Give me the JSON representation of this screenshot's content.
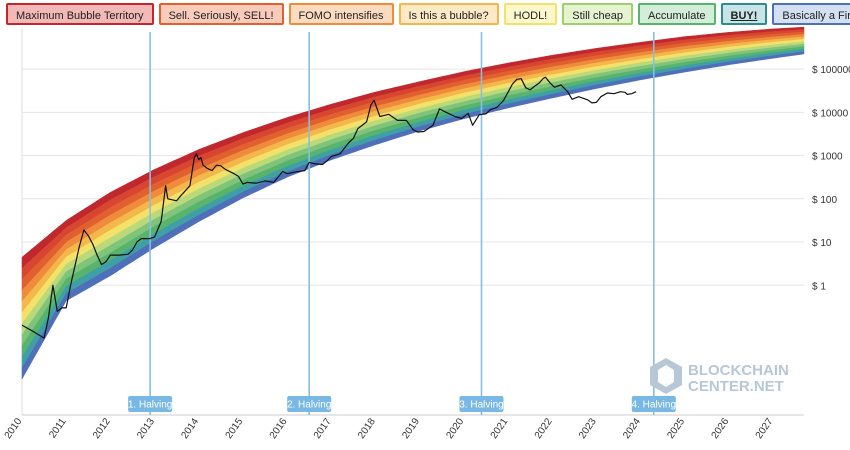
{
  "legend": [
    {
      "label": "Maximum Bubble Territory",
      "fill": "#f3b8b8",
      "border": "#c0282d"
    },
    {
      "label": "Sell. Seriously, SELL!",
      "fill": "#f8cbbb",
      "border": "#e0602f"
    },
    {
      "label": "FOMO intensifies",
      "fill": "#fbdcc0",
      "border": "#ef8b3a"
    },
    {
      "label": "Is this a bubble?",
      "fill": "#fde9c6",
      "border": "#f3b84c"
    },
    {
      "label": "HODL!",
      "fill": "#fdf7cd",
      "border": "#f4e16a"
    },
    {
      "label": "Still cheap",
      "fill": "#e6f3d1",
      "border": "#9fcf6b"
    },
    {
      "label": "Accumulate",
      "fill": "#d4edd8",
      "border": "#58b36c"
    },
    {
      "label": "BUY!",
      "fill": "#c8e4e6",
      "border": "#2f8b91"
    },
    {
      "label": "Basically a Fire Sale",
      "fill": "#d3e0f2",
      "border": "#4f6fb8"
    }
  ],
  "watermark": {
    "line1": "BLOCKCHAIN",
    "line2": "CENTER.NET"
  },
  "chart_data": {
    "type": "line",
    "y_scale": "log",
    "xlim": [
      2010.0,
      2027.7
    ],
    "ylim_log10": [
      -3.0,
      5.95
    ],
    "y_ticks": [
      {
        "value": 100000,
        "label": "$ 100000"
      },
      {
        "value": 10000,
        "label": "$ 10000"
      },
      {
        "value": 1000,
        "label": "$ 1000"
      },
      {
        "value": 100,
        "label": "$ 100"
      },
      {
        "value": 10,
        "label": "$ 10"
      },
      {
        "value": 1,
        "label": "$ 1"
      }
    ],
    "x_ticks": [
      {
        "value": 2010,
        "label": "2010"
      },
      {
        "value": 2011,
        "label": "2011"
      },
      {
        "value": 2012,
        "label": "2012"
      },
      {
        "value": 2013,
        "label": "2013"
      },
      {
        "value": 2014,
        "label": "2014"
      },
      {
        "value": 2015,
        "label": "2015"
      },
      {
        "value": 2016,
        "label": "2016"
      },
      {
        "value": 2017,
        "label": "2017"
      },
      {
        "value": 2018,
        "label": "2018"
      },
      {
        "value": 2019,
        "label": "2019"
      },
      {
        "value": 2020,
        "label": "2020"
      },
      {
        "value": 2021,
        "label": "2021"
      },
      {
        "value": 2022,
        "label": "2022"
      },
      {
        "value": 2023,
        "label": "2023"
      },
      {
        "value": 2024,
        "label": "2024"
      },
      {
        "value": 2025,
        "label": "2025"
      },
      {
        "value": 2026,
        "label": "2026"
      },
      {
        "value": 2027,
        "label": "2027"
      }
    ],
    "halvings": [
      {
        "x": 2012.9,
        "label": "1. Halving"
      },
      {
        "x": 2016.5,
        "label": "2. Halving"
      },
      {
        "x": 2020.4,
        "label": "3. Halving"
      },
      {
        "x": 2024.3,
        "label": "4. Halving"
      }
    ],
    "band_colors": [
      "#c0282d",
      "#d84530",
      "#e0602f",
      "#ef8b3a",
      "#f3b84c",
      "#f4e16a",
      "#b9d97a",
      "#7fc47a",
      "#58b36c",
      "#3f9fa6",
      "#4f6fb8"
    ],
    "bands": {
      "bottom_anchors": [
        [
          2010.0,
          -2.17
        ],
        [
          2011.0,
          -0.36
        ],
        [
          2012.0,
          0.22
        ],
        [
          2013.0,
          0.87
        ],
        [
          2014.0,
          1.47
        ],
        [
          2015.0,
          2.02
        ],
        [
          2016.0,
          2.5
        ],
        [
          2017.0,
          2.9
        ],
        [
          2018.0,
          3.25
        ],
        [
          2019.0,
          3.57
        ],
        [
          2020.0,
          3.85
        ],
        [
          2021.0,
          4.1
        ],
        [
          2022.0,
          4.33
        ],
        [
          2023.0,
          4.55
        ],
        [
          2024.0,
          4.75
        ],
        [
          2025.0,
          4.93
        ],
        [
          2026.0,
          5.1
        ],
        [
          2027.0,
          5.25
        ],
        [
          2027.7,
          5.35
        ]
      ],
      "top_anchors": [
        [
          2010.0,
          0.65
        ],
        [
          2011.0,
          1.5
        ],
        [
          2012.0,
          2.15
        ],
        [
          2013.0,
          2.68
        ],
        [
          2014.0,
          3.14
        ],
        [
          2015.0,
          3.53
        ],
        [
          2016.0,
          3.88
        ],
        [
          2017.0,
          4.19
        ],
        [
          2018.0,
          4.47
        ],
        [
          2019.0,
          4.71
        ],
        [
          2020.0,
          4.94
        ],
        [
          2021.0,
          5.14
        ],
        [
          2022.0,
          5.32
        ],
        [
          2023.0,
          5.48
        ],
        [
          2024.0,
          5.62
        ],
        [
          2025.0,
          5.75
        ],
        [
          2026.0,
          5.85
        ],
        [
          2027.0,
          5.93
        ],
        [
          2027.7,
          5.97
        ]
      ]
    },
    "series": [
      {
        "points": [
          [
            2010.0,
            0.12
          ],
          [
            2010.3,
            0.08
          ],
          [
            2010.5,
            0.06
          ],
          [
            2010.6,
            0.18
          ],
          [
            2010.7,
            1.0
          ],
          [
            2010.8,
            0.25
          ],
          [
            2010.9,
            0.3
          ],
          [
            2011.0,
            0.3
          ],
          [
            2011.1,
            1.0
          ],
          [
            2011.3,
            8.0
          ],
          [
            2011.4,
            19.0
          ],
          [
            2011.5,
            14.0
          ],
          [
            2011.6,
            9.0
          ],
          [
            2011.7,
            5.0
          ],
          [
            2011.8,
            3.0
          ],
          [
            2011.9,
            3.5
          ],
          [
            2012.0,
            5.0
          ],
          [
            2012.2,
            5.0
          ],
          [
            2012.4,
            5.2
          ],
          [
            2012.5,
            6.5
          ],
          [
            2012.6,
            10.0
          ],
          [
            2012.7,
            12.0
          ],
          [
            2012.9,
            12.0
          ],
          [
            2013.0,
            13.0
          ],
          [
            2013.15,
            30.0
          ],
          [
            2013.25,
            200.0
          ],
          [
            2013.3,
            100.0
          ],
          [
            2013.5,
            90.0
          ],
          [
            2013.6,
            120.0
          ],
          [
            2013.8,
            200.0
          ],
          [
            2013.9,
            900.0
          ],
          [
            2013.95,
            1100.0
          ],
          [
            2014.0,
            800.0
          ],
          [
            2014.05,
            900.0
          ],
          [
            2014.1,
            600.0
          ],
          [
            2014.2,
            500.0
          ],
          [
            2014.3,
            450.0
          ],
          [
            2014.4,
            600.0
          ],
          [
            2014.5,
            580.0
          ],
          [
            2014.6,
            480.0
          ],
          [
            2014.8,
            380.0
          ],
          [
            2014.9,
            330.0
          ],
          [
            2015.0,
            220.0
          ],
          [
            2015.1,
            240.0
          ],
          [
            2015.3,
            230.0
          ],
          [
            2015.5,
            260.0
          ],
          [
            2015.7,
            240.0
          ],
          [
            2015.8,
            320.0
          ],
          [
            2015.9,
            430.0
          ],
          [
            2016.0,
            380.0
          ],
          [
            2016.2,
            420.0
          ],
          [
            2016.4,
            450.0
          ],
          [
            2016.5,
            700.0
          ],
          [
            2016.6,
            650.0
          ],
          [
            2016.8,
            620.0
          ],
          [
            2016.9,
            750.0
          ],
          [
            2017.0,
            950.0
          ],
          [
            2017.2,
            1100.0
          ],
          [
            2017.4,
            2000.0
          ],
          [
            2017.5,
            2500.0
          ],
          [
            2017.6,
            4200.0
          ],
          [
            2017.8,
            6000.0
          ],
          [
            2017.9,
            15000.0
          ],
          [
            2017.97,
            19000.0
          ],
          [
            2018.05,
            11000.0
          ],
          [
            2018.1,
            8000.0
          ],
          [
            2018.3,
            9000.0
          ],
          [
            2018.5,
            6500.0
          ],
          [
            2018.7,
            6500.0
          ],
          [
            2018.85,
            4000.0
          ],
          [
            2018.95,
            3500.0
          ],
          [
            2019.1,
            3600.0
          ],
          [
            2019.3,
            5000.0
          ],
          [
            2019.45,
            12000.0
          ],
          [
            2019.6,
            10000.0
          ],
          [
            2019.8,
            8000.0
          ],
          [
            2019.95,
            7200.0
          ],
          [
            2020.1,
            9500.0
          ],
          [
            2020.2,
            5000.0
          ],
          [
            2020.35,
            8800.0
          ],
          [
            2020.5,
            9200.0
          ],
          [
            2020.6,
            11500.0
          ],
          [
            2020.75,
            13000.0
          ],
          [
            2020.9,
            19000.0
          ],
          [
            2021.0,
            29000.0
          ],
          [
            2021.1,
            45000.0
          ],
          [
            2021.2,
            58000.0
          ],
          [
            2021.3,
            60000.0
          ],
          [
            2021.4,
            37000.0
          ],
          [
            2021.5,
            33000.0
          ],
          [
            2021.6,
            40000.0
          ],
          [
            2021.7,
            47000.0
          ],
          [
            2021.8,
            61000.0
          ],
          [
            2021.85,
            65000.0
          ],
          [
            2021.95,
            48000.0
          ],
          [
            2022.05,
            38000.0
          ],
          [
            2022.2,
            43000.0
          ],
          [
            2022.35,
            30000.0
          ],
          [
            2022.45,
            20000.0
          ],
          [
            2022.6,
            23000.0
          ],
          [
            2022.8,
            19500.0
          ],
          [
            2022.9,
            16500.0
          ],
          [
            2023.0,
            17000.0
          ],
          [
            2023.1,
            23000.0
          ],
          [
            2023.25,
            28000.0
          ],
          [
            2023.4,
            27000.0
          ],
          [
            2023.55,
            30000.0
          ],
          [
            2023.65,
            29000.0
          ],
          [
            2023.7,
            26000.0
          ],
          [
            2023.8,
            27000.0
          ],
          [
            2023.9,
            30000.0
          ]
        ]
      }
    ]
  }
}
